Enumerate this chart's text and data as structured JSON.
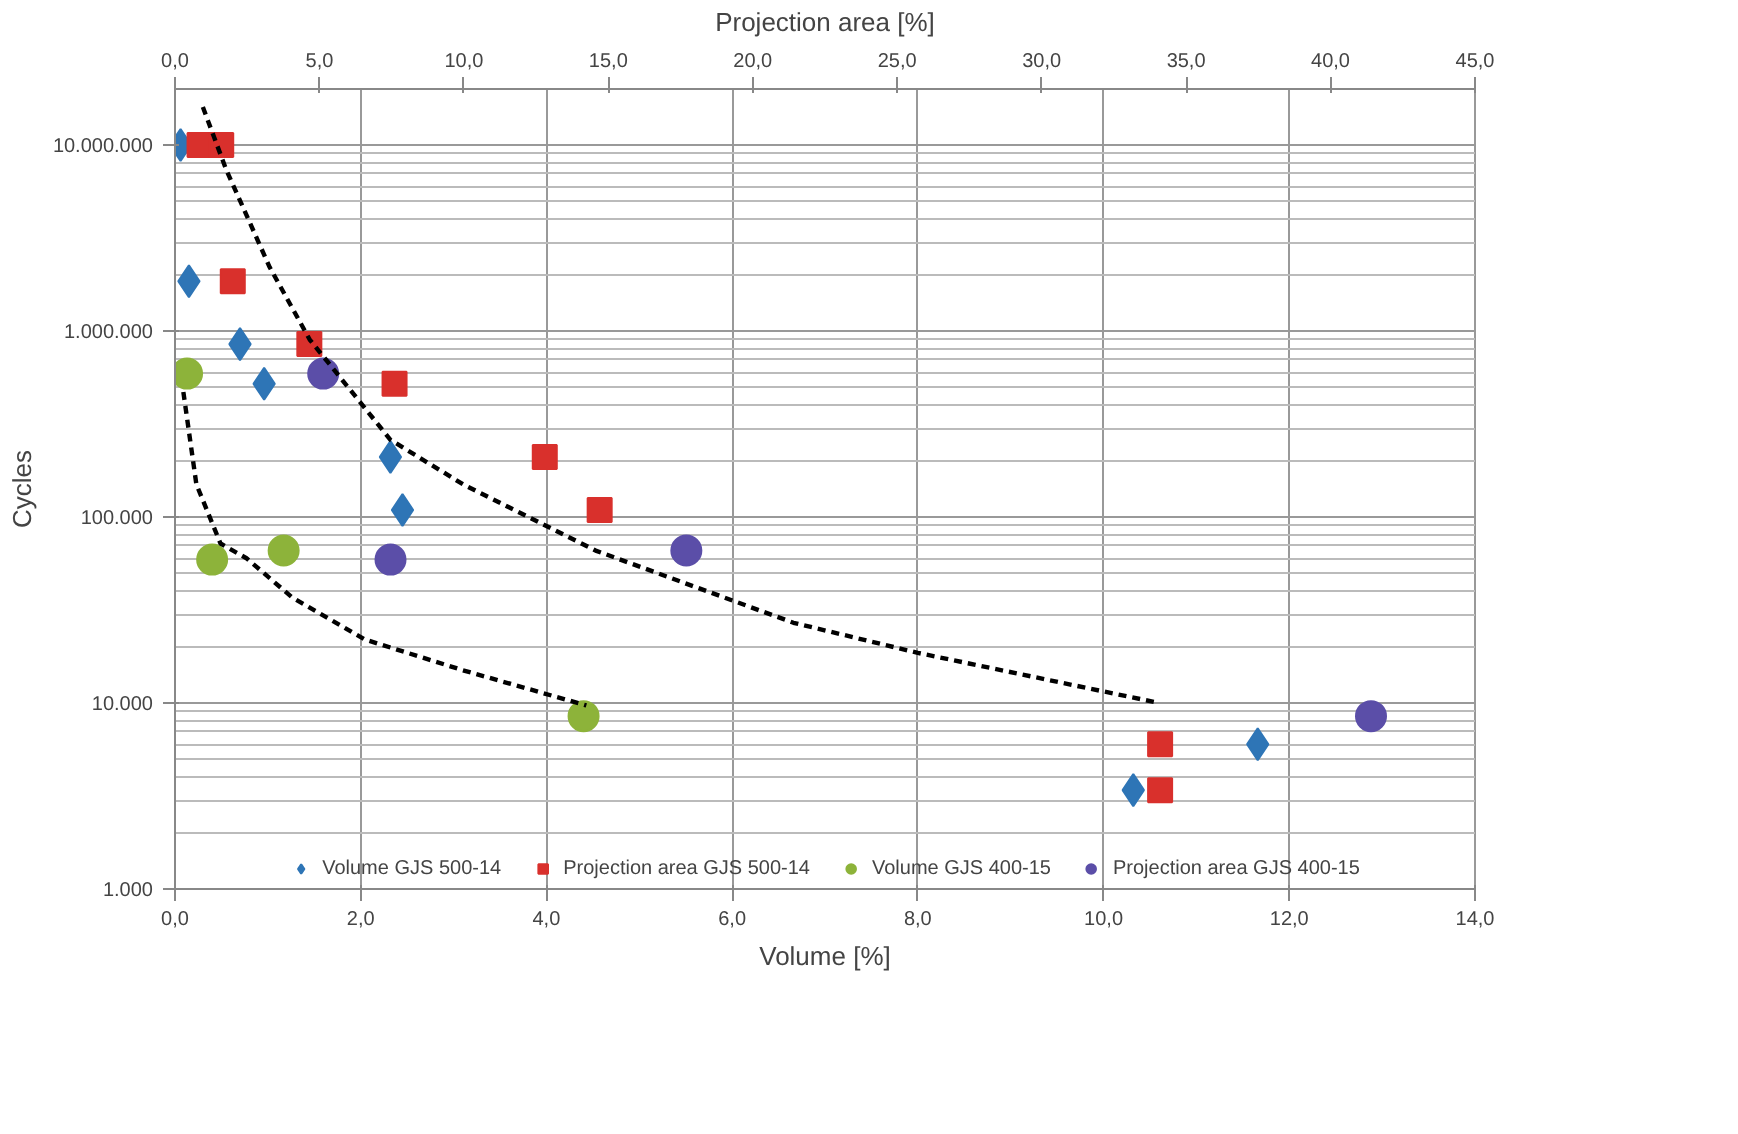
{
  "chart_data": {
    "type": "scatter",
    "xlabel": "Volume [%]",
    "x2label": "Projection area [%]",
    "ylabel": "Cycles",
    "xlim": [
      0,
      14
    ],
    "xticks": [
      {
        "value": 0,
        "label": "0,0"
      },
      {
        "value": 2,
        "label": "2,0"
      },
      {
        "value": 4,
        "label": "4,0"
      },
      {
        "value": 6,
        "label": "6,0"
      },
      {
        "value": 8,
        "label": "8,0"
      },
      {
        "value": 10,
        "label": "10,0"
      },
      {
        "value": 12,
        "label": "12,0"
      },
      {
        "value": 14,
        "label": "14,0"
      }
    ],
    "x2lim": [
      0,
      45
    ],
    "x2ticks": [
      {
        "value": 0,
        "label": "0,0"
      },
      {
        "value": 5,
        "label": "5,0"
      },
      {
        "value": 10,
        "label": "10,0"
      },
      {
        "value": 15,
        "label": "15,0"
      },
      {
        "value": 20,
        "label": "20,0"
      },
      {
        "value": 25,
        "label": "25,0"
      },
      {
        "value": 30,
        "label": "30,0"
      },
      {
        "value": 35,
        "label": "35,0"
      },
      {
        "value": 40,
        "label": "40,0"
      },
      {
        "value": 45,
        "label": "45,0"
      }
    ],
    "ylim": [
      1000,
      20000000
    ],
    "yticks": [
      {
        "value": 1000,
        "label": "1.000"
      },
      {
        "value": 10000,
        "label": "10.000"
      },
      {
        "value": 100000,
        "label": "100.000"
      },
      {
        "value": 1000000,
        "label": "1.000.000"
      },
      {
        "value": 10000000,
        "label": "10.000.000"
      }
    ],
    "log": "y",
    "grid": true,
    "legend": "bottom",
    "series": [
      {
        "name": "Volume GJS 500-14",
        "color": "#2e75b6",
        "marker": "diamond",
        "x": [
          0.06,
          0.15,
          0.7,
          0.96,
          2.32,
          2.45,
          10.32,
          11.66
        ],
        "values": [
          10000000,
          1850000,
          850000,
          520000,
          210000,
          109000,
          3400,
          6000
        ]
      },
      {
        "name": "Projection area GJS 500-14",
        "color": "#d9302c",
        "marker": "square",
        "axis": "x2",
        "x": [
          0.85,
          1.6,
          2.0,
          4.65,
          7.6,
          12.8,
          14.7,
          34.1,
          34.1
        ],
        "values": [
          10000000,
          10000000,
          1850000,
          850000,
          520000,
          210000,
          109000,
          6000,
          3400
        ]
      },
      {
        "name": "Volume GJS 400-15",
        "color": "#8db33a",
        "marker": "circle",
        "x": [
          0.13,
          0.4,
          1.17,
          4.4
        ],
        "values": [
          590000,
          59000,
          66000,
          8500
        ]
      },
      {
        "name": "Projection area GJS 400-15",
        "color": "#5b4ea8",
        "marker": "circle",
        "axis": "x2",
        "x": [
          5.13,
          7.46,
          17.7,
          41.4
        ],
        "values": [
          590000,
          59000,
          66000,
          8500
        ]
      },
      {
        "type": "line",
        "color": "#000000",
        "line_style": "dashed",
        "marker": "none",
        "x": [
          0.3,
          0.55,
          1.02,
          1.45,
          2.32,
          3.1,
          4.53,
          6.66,
          8.0,
          10.6
        ],
        "values": [
          16000000,
          7400000,
          2200000,
          900000,
          260000,
          150000,
          66000,
          27000,
          18600,
          10000
        ]
      },
      {
        "type": "line",
        "color": "#000000",
        "line_style": "dashed",
        "marker": "none",
        "x": [
          0.09,
          0.23,
          0.49,
          0.77,
          1.26,
          2.04,
          3.1,
          4.43
        ],
        "values": [
          470000,
          150000,
          72000,
          60000,
          37000,
          22000,
          15000,
          9700
        ]
      }
    ]
  }
}
